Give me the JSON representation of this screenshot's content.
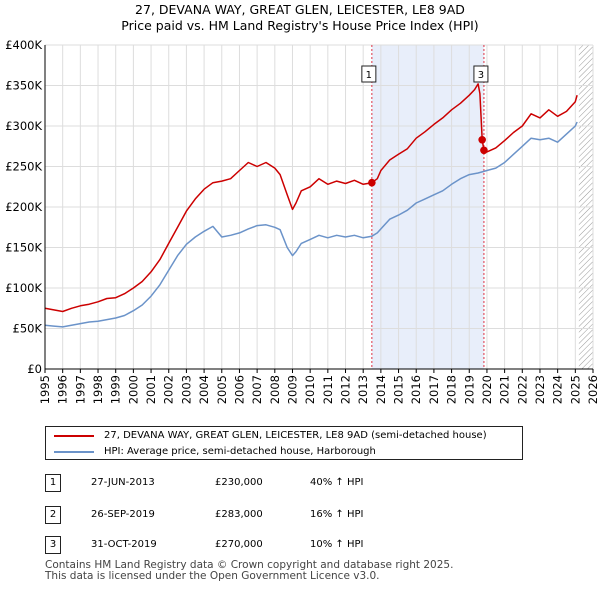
{
  "title_line1": "27, DEVANA WAY, GREAT GLEN, LEICESTER, LE8 9AD",
  "title_line2": "Price paid vs. HM Land Registry's House Price Index (HPI)",
  "colors": {
    "price_line": "#cc0000",
    "hpi_line": "#6b93c9",
    "shade": "#e8eefa",
    "vline": "#dd3344",
    "grid": "#dddddd"
  },
  "chart_data": {
    "type": "line",
    "ylim": [
      0,
      400000
    ],
    "xlim": [
      1995,
      2026
    ],
    "y_ticks": [
      {
        "value": 0,
        "label": "£0"
      },
      {
        "value": 50000,
        "label": "£50K"
      },
      {
        "value": 100000,
        "label": "£100K"
      },
      {
        "value": 150000,
        "label": "£150K"
      },
      {
        "value": 200000,
        "label": "£200K"
      },
      {
        "value": 250000,
        "label": "£250K"
      },
      {
        "value": 300000,
        "label": "£300K"
      },
      {
        "value": 350000,
        "label": "£350K"
      },
      {
        "value": 400000,
        "label": "£400K"
      }
    ],
    "x_ticks": [
      "1995",
      "1996",
      "1997",
      "1998",
      "1999",
      "2000",
      "2001",
      "2002",
      "2003",
      "2004",
      "2005",
      "2006",
      "2007",
      "2008",
      "2009",
      "2010",
      "2011",
      "2012",
      "2013",
      "2014",
      "2015",
      "2016",
      "2017",
      "2018",
      "2019",
      "2020",
      "2021",
      "2022",
      "2023",
      "2024",
      "2025",
      "2026"
    ],
    "shaded_range": [
      2013.49,
      2019.83
    ],
    "hatched_from": 2025.2,
    "series": [
      {
        "name": "27, DEVANA WAY, GREAT GLEN, LEICESTER, LE8 9AD (semi-detached house)",
        "color": "#cc0000",
        "x": [
          1995.0,
          1995.5,
          1996.0,
          1996.5,
          1997.0,
          1997.5,
          1998.0,
          1998.5,
          1999.0,
          1999.5,
          2000.0,
          2000.5,
          2001.0,
          2001.5,
          2002.0,
          2002.5,
          2003.0,
          2003.5,
          2004.0,
          2004.5,
          2005.0,
          2005.5,
          2006.0,
          2006.5,
          2007.0,
          2007.5,
          2008.0,
          2008.3,
          2008.7,
          2009.0,
          2009.2,
          2009.5,
          2010.0,
          2010.5,
          2011.0,
          2011.5,
          2012.0,
          2012.5,
          2013.0,
          2013.49,
          2013.8,
          2014.0,
          2014.5,
          2015.0,
          2015.5,
          2016.0,
          2016.5,
          2017.0,
          2017.5,
          2018.0,
          2018.5,
          2019.0,
          2019.3,
          2019.5,
          2019.6,
          2019.73,
          2019.83,
          2020.0,
          2020.5,
          2021.0,
          2021.5,
          2022.0,
          2022.5,
          2023.0,
          2023.5,
          2024.0,
          2024.5,
          2025.0,
          2025.1
        ],
        "y": [
          75000,
          73000,
          71000,
          75000,
          78000,
          80000,
          83000,
          87000,
          88000,
          93000,
          100000,
          108000,
          120000,
          135000,
          155000,
          175000,
          195000,
          210000,
          222000,
          230000,
          232000,
          235000,
          245000,
          255000,
          250000,
          255000,
          248000,
          240000,
          215000,
          197000,
          205000,
          220000,
          225000,
          235000,
          228000,
          232000,
          229000,
          233000,
          228000,
          230000,
          235000,
          245000,
          258000,
          265000,
          272000,
          285000,
          293000,
          302000,
          310000,
          320000,
          328000,
          338000,
          345000,
          352000,
          340000,
          283000,
          270000,
          268000,
          273000,
          282000,
          292000,
          300000,
          315000,
          310000,
          320000,
          312000,
          318000,
          330000,
          338000
        ]
      },
      {
        "name": "HPI: Average price, semi-detached house, Harborough",
        "color": "#6b93c9",
        "x": [
          1995.0,
          1995.5,
          1996.0,
          1996.5,
          1997.0,
          1997.5,
          1998.0,
          1998.5,
          1999.0,
          1999.5,
          2000.0,
          2000.5,
          2001.0,
          2001.5,
          2002.0,
          2002.5,
          2003.0,
          2003.5,
          2004.0,
          2004.5,
          2005.0,
          2005.5,
          2006.0,
          2006.5,
          2007.0,
          2007.5,
          2008.0,
          2008.3,
          2008.7,
          2009.0,
          2009.2,
          2009.5,
          2010.0,
          2010.5,
          2011.0,
          2011.5,
          2012.0,
          2012.5,
          2013.0,
          2013.49,
          2013.8,
          2014.0,
          2014.5,
          2015.0,
          2015.5,
          2016.0,
          2016.5,
          2017.0,
          2017.5,
          2018.0,
          2018.5,
          2019.0,
          2019.5,
          2019.83,
          2020.0,
          2020.5,
          2021.0,
          2021.5,
          2022.0,
          2022.5,
          2023.0,
          2023.5,
          2024.0,
          2024.5,
          2025.0,
          2025.1
        ],
        "y": [
          54000,
          53000,
          52000,
          54000,
          56000,
          58000,
          59000,
          61000,
          63000,
          66000,
          72000,
          79000,
          90000,
          104000,
          122000,
          140000,
          154000,
          163000,
          170000,
          176000,
          163000,
          165000,
          168000,
          173000,
          177000,
          178000,
          175000,
          172000,
          150000,
          140000,
          145000,
          155000,
          160000,
          165000,
          162000,
          165000,
          163000,
          165000,
          162000,
          164000,
          168000,
          173000,
          185000,
          190000,
          196000,
          205000,
          210000,
          215000,
          220000,
          228000,
          235000,
          240000,
          242000,
          244000,
          245000,
          248000,
          255000,
          265000,
          275000,
          285000,
          283000,
          285000,
          280000,
          290000,
          300000,
          305000
        ]
      }
    ],
    "sales": [
      {
        "id": "1",
        "x": 2013.49,
        "y": 230000
      },
      {
        "id": "2",
        "x": 2019.73,
        "y": 283000
      },
      {
        "id": "3",
        "x": 2019.83,
        "y": 270000
      }
    ]
  },
  "legend": {
    "price_label": "27, DEVANA WAY, GREAT GLEN, LEICESTER, LE8 9AD (semi-detached house)",
    "hpi_label": "HPI: Average price, semi-detached house, Harborough"
  },
  "table": [
    {
      "num": "1",
      "date": "27-JUN-2013",
      "price": "£230,000",
      "hpi": "40% ↑ HPI"
    },
    {
      "num": "2",
      "date": "26-SEP-2019",
      "price": "£283,000",
      "hpi": "16% ↑ HPI"
    },
    {
      "num": "3",
      "date": "31-OCT-2019",
      "price": "£270,000",
      "hpi": "10% ↑ HPI"
    }
  ],
  "footer": {
    "line1": "Contains HM Land Registry data © Crown copyright and database right 2025.",
    "line2": "This data is licensed under the Open Government Licence v3.0."
  }
}
